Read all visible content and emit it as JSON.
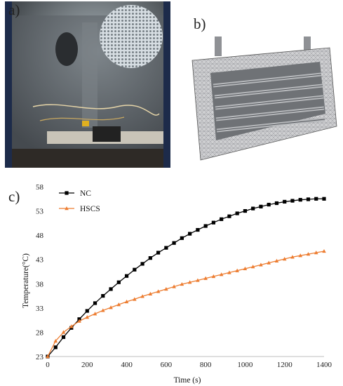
{
  "labels": {
    "a": "a)",
    "b": "b)",
    "c": "c)"
  },
  "colors": {
    "nc": "#000000",
    "hscs": "#ed7d31",
    "axis": "#bfbfbf"
  },
  "chart_data": {
    "type": "line",
    "xlabel": "Time (s)",
    "ylabel": "Temperature(°C)",
    "xlim": [
      0,
      1400
    ],
    "ylim": [
      23,
      58
    ],
    "xticks": [
      0,
      200,
      400,
      600,
      800,
      1000,
      1200,
      1400
    ],
    "yticks": [
      23,
      28,
      33,
      38,
      43,
      48,
      53,
      58
    ],
    "legend_position": "top-left",
    "grid": false,
    "series": [
      {
        "name": "NC",
        "marker": "square",
        "color": "#000000",
        "x": [
          0,
          40,
          80,
          120,
          160,
          200,
          240,
          280,
          320,
          360,
          400,
          440,
          480,
          520,
          560,
          600,
          640,
          680,
          720,
          760,
          800,
          840,
          880,
          920,
          960,
          1000,
          1040,
          1080,
          1120,
          1160,
          1200,
          1240,
          1280,
          1320,
          1360,
          1400
        ],
        "y": [
          23.0,
          24.9,
          27.0,
          28.9,
          30.7,
          32.4,
          34.0,
          35.5,
          36.9,
          38.3,
          39.6,
          40.9,
          42.1,
          43.3,
          44.4,
          45.4,
          46.4,
          47.4,
          48.3,
          49.1,
          49.9,
          50.6,
          51.3,
          51.9,
          52.5,
          53.0,
          53.5,
          53.9,
          54.3,
          54.6,
          54.9,
          55.1,
          55.3,
          55.4,
          55.5,
          55.5
        ]
      },
      {
        "name": "HSCS",
        "marker": "triangle",
        "color": "#ed7d31",
        "x": [
          0,
          40,
          80,
          120,
          160,
          200,
          240,
          280,
          320,
          360,
          400,
          440,
          480,
          520,
          560,
          600,
          640,
          680,
          720,
          760,
          800,
          840,
          880,
          920,
          960,
          1000,
          1040,
          1080,
          1120,
          1160,
          1200,
          1240,
          1280,
          1320,
          1360,
          1400
        ],
        "y": [
          23.0,
          26.2,
          28.0,
          29.2,
          30.3,
          31.1,
          31.8,
          32.5,
          33.1,
          33.7,
          34.3,
          34.8,
          35.4,
          35.9,
          36.4,
          36.9,
          37.4,
          37.9,
          38.3,
          38.7,
          39.1,
          39.5,
          39.9,
          40.3,
          40.7,
          41.1,
          41.5,
          41.9,
          42.3,
          42.7,
          43.1,
          43.5,
          43.8,
          44.1,
          44.4,
          44.7
        ]
      }
    ]
  }
}
